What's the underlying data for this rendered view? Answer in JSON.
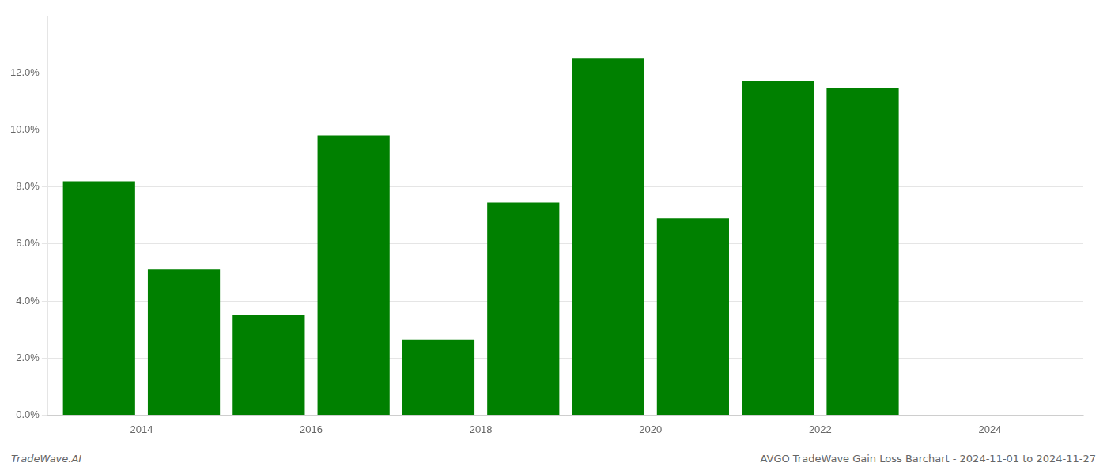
{
  "chart_data": {
    "type": "bar",
    "x": [
      2013,
      2014,
      2015,
      2016,
      2017,
      2018,
      2019,
      2020,
      2021,
      2022,
      2023
    ],
    "values": [
      0.082,
      0.051,
      0.035,
      0.098,
      0.0265,
      0.0745,
      0.125,
      0.069,
      0.117,
      0.1145,
      0.0
    ],
    "color": "#008000",
    "xlim": [
      2012.4,
      2024.6
    ],
    "xticks": [
      {
        "value": 2013.5,
        "label": "2014"
      },
      {
        "value": 2015.5,
        "label": "2016"
      },
      {
        "value": 2017.5,
        "label": "2018"
      },
      {
        "value": 2019.5,
        "label": "2020"
      },
      {
        "value": 2021.5,
        "label": "2022"
      },
      {
        "value": 2023.5,
        "label": "2024"
      }
    ],
    "ylim": [
      0,
      0.14
    ],
    "yticks": [
      {
        "value": 0.0,
        "label": "0.0%"
      },
      {
        "value": 0.02,
        "label": "2.0%"
      },
      {
        "value": 0.04,
        "label": "4.0%"
      },
      {
        "value": 0.06,
        "label": "6.0%"
      },
      {
        "value": 0.08,
        "label": "8.0%"
      },
      {
        "value": 0.1,
        "label": "10.0%"
      },
      {
        "value": 0.12,
        "label": "12.0%"
      }
    ],
    "grid": true,
    "annotations": [
      "TradeWave.AI",
      "AVGO TradeWave Gain Loss Barchart - 2024-11-01 to 2024-11-27"
    ]
  }
}
